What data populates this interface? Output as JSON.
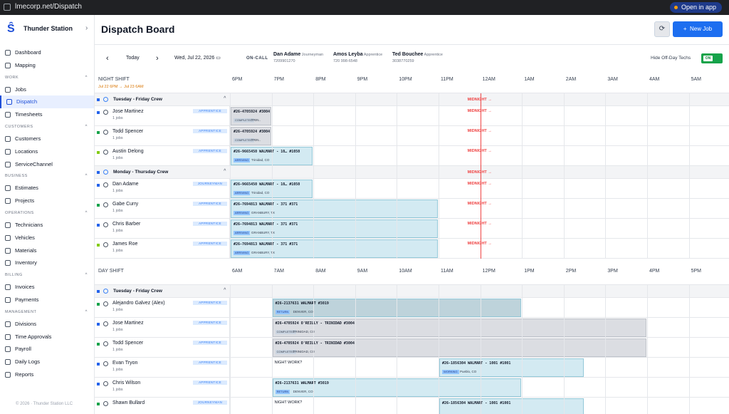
{
  "browser": {
    "url": "lmecorp.net/Dispatch",
    "open_label": "Open in app"
  },
  "sidebar": {
    "org": "Thunder Station",
    "items": [
      {
        "label": "Dashboard",
        "icon": "dashboard-icon"
      },
      {
        "label": "Mapping",
        "icon": "map-icon"
      },
      {
        "section": "WORK"
      },
      {
        "label": "Jobs",
        "icon": "briefcase-icon"
      },
      {
        "label": "Dispatch",
        "icon": "dispatch-icon",
        "active": true
      },
      {
        "label": "Timesheets",
        "icon": "clock-icon"
      },
      {
        "section": "CUSTOMERS"
      },
      {
        "label": "Customers",
        "icon": "users-icon"
      },
      {
        "label": "Locations",
        "icon": "pin-icon"
      },
      {
        "label": "ServiceChannel",
        "icon": "link-icon"
      },
      {
        "section": "BUSINESS"
      },
      {
        "label": "Estimates",
        "icon": "file-icon"
      },
      {
        "label": "Projects",
        "icon": "folder-icon"
      },
      {
        "section": "OPERATIONS"
      },
      {
        "label": "Technicians",
        "icon": "wrench-icon"
      },
      {
        "label": "Vehicles",
        "icon": "truck-icon"
      },
      {
        "label": "Materials",
        "icon": "box-icon"
      },
      {
        "label": "Inventory",
        "icon": "archive-icon"
      },
      {
        "section": "BILLING"
      },
      {
        "label": "Invoices",
        "icon": "invoice-icon"
      },
      {
        "label": "Payments",
        "icon": "dollar-icon"
      },
      {
        "section": "MANAGEMENT"
      },
      {
        "label": "Divisions",
        "icon": "grid-icon"
      },
      {
        "label": "Time Approvals",
        "icon": "check-clock-icon"
      },
      {
        "label": "Payroll",
        "icon": "wallet-icon"
      },
      {
        "label": "Daily Logs",
        "icon": "log-icon"
      },
      {
        "label": "Reports",
        "icon": "chart-icon"
      }
    ],
    "footer": "© 2026 · Thunder Station LLC"
  },
  "header": {
    "title": "Dispatch Board",
    "new_job": "New Job"
  },
  "controls": {
    "prev": "‹",
    "today": "Today",
    "next": "›",
    "date": "Wed, Jul 22, 2026",
    "oncall": "ON-CALL",
    "hide_label": "Hide Off-Day Techs",
    "toggle": "ON"
  },
  "oncall": [
    {
      "name": "Dan Adame",
      "role": "Journeyman",
      "phone": "7209901270"
    },
    {
      "name": "Amos Leyba",
      "role": "Apprentice",
      "phone": "720 998-6548"
    },
    {
      "name": "Ted Bouchee",
      "role": "Apprentice",
      "phone": "3038770259"
    }
  ],
  "night": {
    "label": "NIGHT SHIFT",
    "range": "Jul 22 6PM → Jul 23 6AM",
    "hours": [
      "6PM",
      "7PM",
      "8PM",
      "9PM",
      "10PM",
      "11PM",
      "12AM",
      "1AM",
      "2AM",
      "3AM",
      "4AM",
      "5AM"
    ],
    "midnight": "MIDNIGHT →",
    "groups": [
      {
        "name": "Tuesday - Friday Crew",
        "count": "^",
        "rows": [
          {
            "name": "Jose Martinez",
            "jobs": "1 jobs",
            "role": "APPRENTICE",
            "color": "#2563eb",
            "job": {
              "title": "#26-4705924 #3004",
              "status": "COMPLETED",
              "loc": "TRIN..",
              "start": 0,
              "end": 1,
              "gray": true
            }
          },
          {
            "name": "Todd Spencer",
            "jobs": "1 jobs",
            "role": "APPRENTICE",
            "color": "#16a34a",
            "job": {
              "title": "#26-4705924 #3004",
              "status": "COMPLETED",
              "loc": "TRIN..",
              "start": 0,
              "end": 1,
              "gray": true
            }
          },
          {
            "name": "Austin Delong",
            "jobs": "1 jobs",
            "role": "APPRENTICE",
            "color": "#84cc16",
            "job": {
              "title": "#26-9665450 WALMART - 10… #1050",
              "status": "ARRIVING",
              "loc": "Trinidad, CO",
              "start": 0,
              "end": 2
            }
          }
        ]
      },
      {
        "name": "Monday - Thursday Crew",
        "count": "^",
        "rows": [
          {
            "name": "Dan Adame",
            "jobs": "1 jobs",
            "role": "JOURNEYMAN",
            "color": "#2563eb",
            "job": {
              "title": "#26-9665450 WALMART - 10… #1050",
              "status": "ARRIVING",
              "loc": "Trinidad, CO",
              "start": 0,
              "end": 2
            }
          },
          {
            "name": "Gabe Curry",
            "jobs": "1 jobs",
            "role": "APPRENTICE",
            "color": "#16a34a",
            "job": {
              "title": "#26-7694813 WALMART - 371 #371",
              "status": "ARRIVING",
              "loc": "GRANBURY, TX",
              "start": 0,
              "end": 5
            }
          },
          {
            "name": "Chris Barber",
            "jobs": "1 jobs",
            "role": "APPRENTICE",
            "color": "#2563eb",
            "job": {
              "title": "#26-7694813 WALMART - 371 #371",
              "status": "ARRIVING",
              "loc": "GRANBURY, TX",
              "start": 0,
              "end": 5
            }
          },
          {
            "name": "James Roe",
            "jobs": "1 jobs",
            "role": "APPRENTICE",
            "color": "#84cc16",
            "job": {
              "title": "#26-7694813 WALMART - 371 #371",
              "status": "ARRIVING",
              "loc": "GRANBURY, TX",
              "start": 0,
              "end": 5
            }
          }
        ]
      }
    ]
  },
  "day": {
    "label": "DAY SHIFT",
    "hours": [
      "6AM",
      "7AM",
      "8AM",
      "9AM",
      "10AM",
      "11AM",
      "12PM",
      "1PM",
      "2PM",
      "3PM",
      "4PM",
      "5PM"
    ],
    "groups": [
      {
        "name": "Tuesday - Friday Crew",
        "count": "^",
        "rows": [
          {
            "name": "Alejandro Galvez (Alex)",
            "jobs": "1 jobs",
            "role": "APPRENTICE",
            "color": "#16a34a",
            "job": {
              "title": "#26-2137631 WALMART #3019",
              "status": "RETURN",
              "loc": "DENVER, CO",
              "start": 1,
              "end": 7,
              "dark": true
            }
          },
          {
            "name": "Jose Martinez",
            "jobs": "1 jobs",
            "role": "APPRENTICE",
            "color": "#2563eb",
            "job": {
              "title": "#26-4705924 O'REILLY - TRINIDAD #3004",
              "status": "COMPLETED",
              "loc": "TRINIDAD, CO",
              "start": 1,
              "end": 10,
              "gray": true
            }
          },
          {
            "name": "Todd Spencer",
            "jobs": "1 jobs",
            "role": "APPRENTICE",
            "color": "#16a34a",
            "job": {
              "title": "#26-4705924 O'REILLY - TRINIDAD #3004",
              "status": "COMPLETED",
              "loc": "TRINIDAD, CO",
              "start": 1,
              "end": 10,
              "gray": true
            }
          },
          {
            "name": "Evan Tryon",
            "jobs": "1 jobs",
            "role": "APPRENTICE",
            "color": "#2563eb",
            "night": "NIGHT WORK?",
            "job": {
              "title": "#26-1856304 WALMART - 1001 #1001",
              "status": "WORKING",
              "loc": "Pueblo, CO",
              "start": 5,
              "end": 8.5
            }
          },
          {
            "name": "Chris Wilson",
            "jobs": "1 jobs",
            "role": "APPRENTICE",
            "color": "#2563eb",
            "job": {
              "title": "#26-2137631 WALMART #3019",
              "status": "RETURN",
              "loc": "DENVER, CO",
              "start": 1,
              "end": 7
            }
          },
          {
            "name": "Shawn Bullard",
            "jobs": "",
            "role": "JOURNEYMAN",
            "color": "#16a34a",
            "night": "NIGHT WORK?",
            "job": {
              "title": "#26-1856304 WALMART - 1001 #1001",
              "status": "",
              "loc": "",
              "start": 5,
              "end": 8.5
            }
          }
        ]
      }
    ]
  }
}
